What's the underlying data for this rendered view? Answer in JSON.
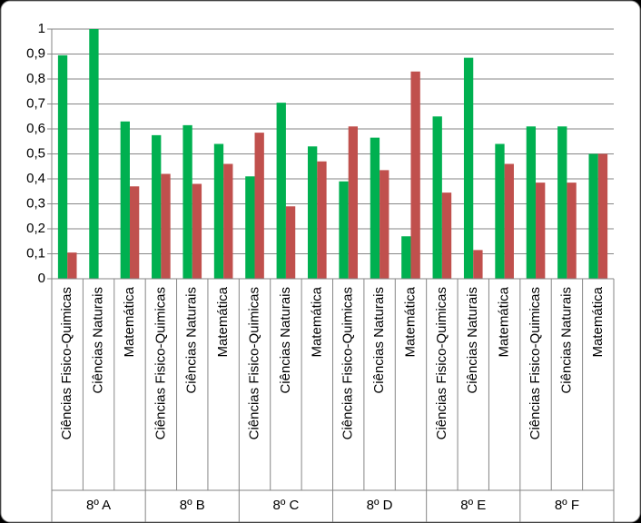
{
  "chart_data": {
    "type": "bar",
    "groups": [
      "8º A",
      "8º B",
      "8º C",
      "8º D",
      "8º E",
      "8º F"
    ],
    "categories": [
      "Ciências Fisico-Quimicas",
      "Ciências Naturais",
      "Matemática",
      "Ciências Fisico-Quimicas",
      "Ciências Naturais",
      "Matemática",
      "Ciências Fisico-Quimicas",
      "Ciências Naturais",
      "Matemática",
      "Ciências Fisico-Quimicas",
      "Ciências Naturais",
      "Matemática",
      "Ciências Fisico-Quimicas",
      "Ciências Naturais",
      "Matemática",
      "Ciências Fisico-Quimicas",
      "Ciências Naturais",
      "Matemática"
    ],
    "series": [
      {
        "color": "#00b050",
        "values": [
          0.895,
          1,
          0.63,
          0.575,
          0.615,
          0.54,
          0.41,
          0.705,
          0.53,
          0.39,
          0.565,
          0.17,
          0.65,
          0.885,
          0.54,
          0.61,
          0.61,
          0.5
        ]
      },
      {
        "color": "#c0504d",
        "values": [
          0.105,
          0,
          0.37,
          0.42,
          0.38,
          0.46,
          0.585,
          0.29,
          0.47,
          0.61,
          0.435,
          0.83,
          0.345,
          0.115,
          0.46,
          0.385,
          0.385,
          0.5
        ]
      }
    ],
    "ylim": [
      0,
      1
    ],
    "yticks": [
      0,
      {
        "value": 0.1,
        "label": "0,1"
      },
      {
        "value": 0.2,
        "label": "0,2"
      },
      {
        "value": 0.3,
        "label": "0,3"
      },
      {
        "value": 0.4,
        "label": "0,4"
      },
      {
        "value": 0.5,
        "label": "0,5"
      },
      {
        "value": 0.6,
        "label": "0,6"
      },
      {
        "value": 0.7,
        "label": "0,7"
      },
      {
        "value": 0.8,
        "label": "0,8"
      },
      {
        "value": 0.9,
        "label": "0,9"
      },
      1
    ],
    "grid": true
  }
}
